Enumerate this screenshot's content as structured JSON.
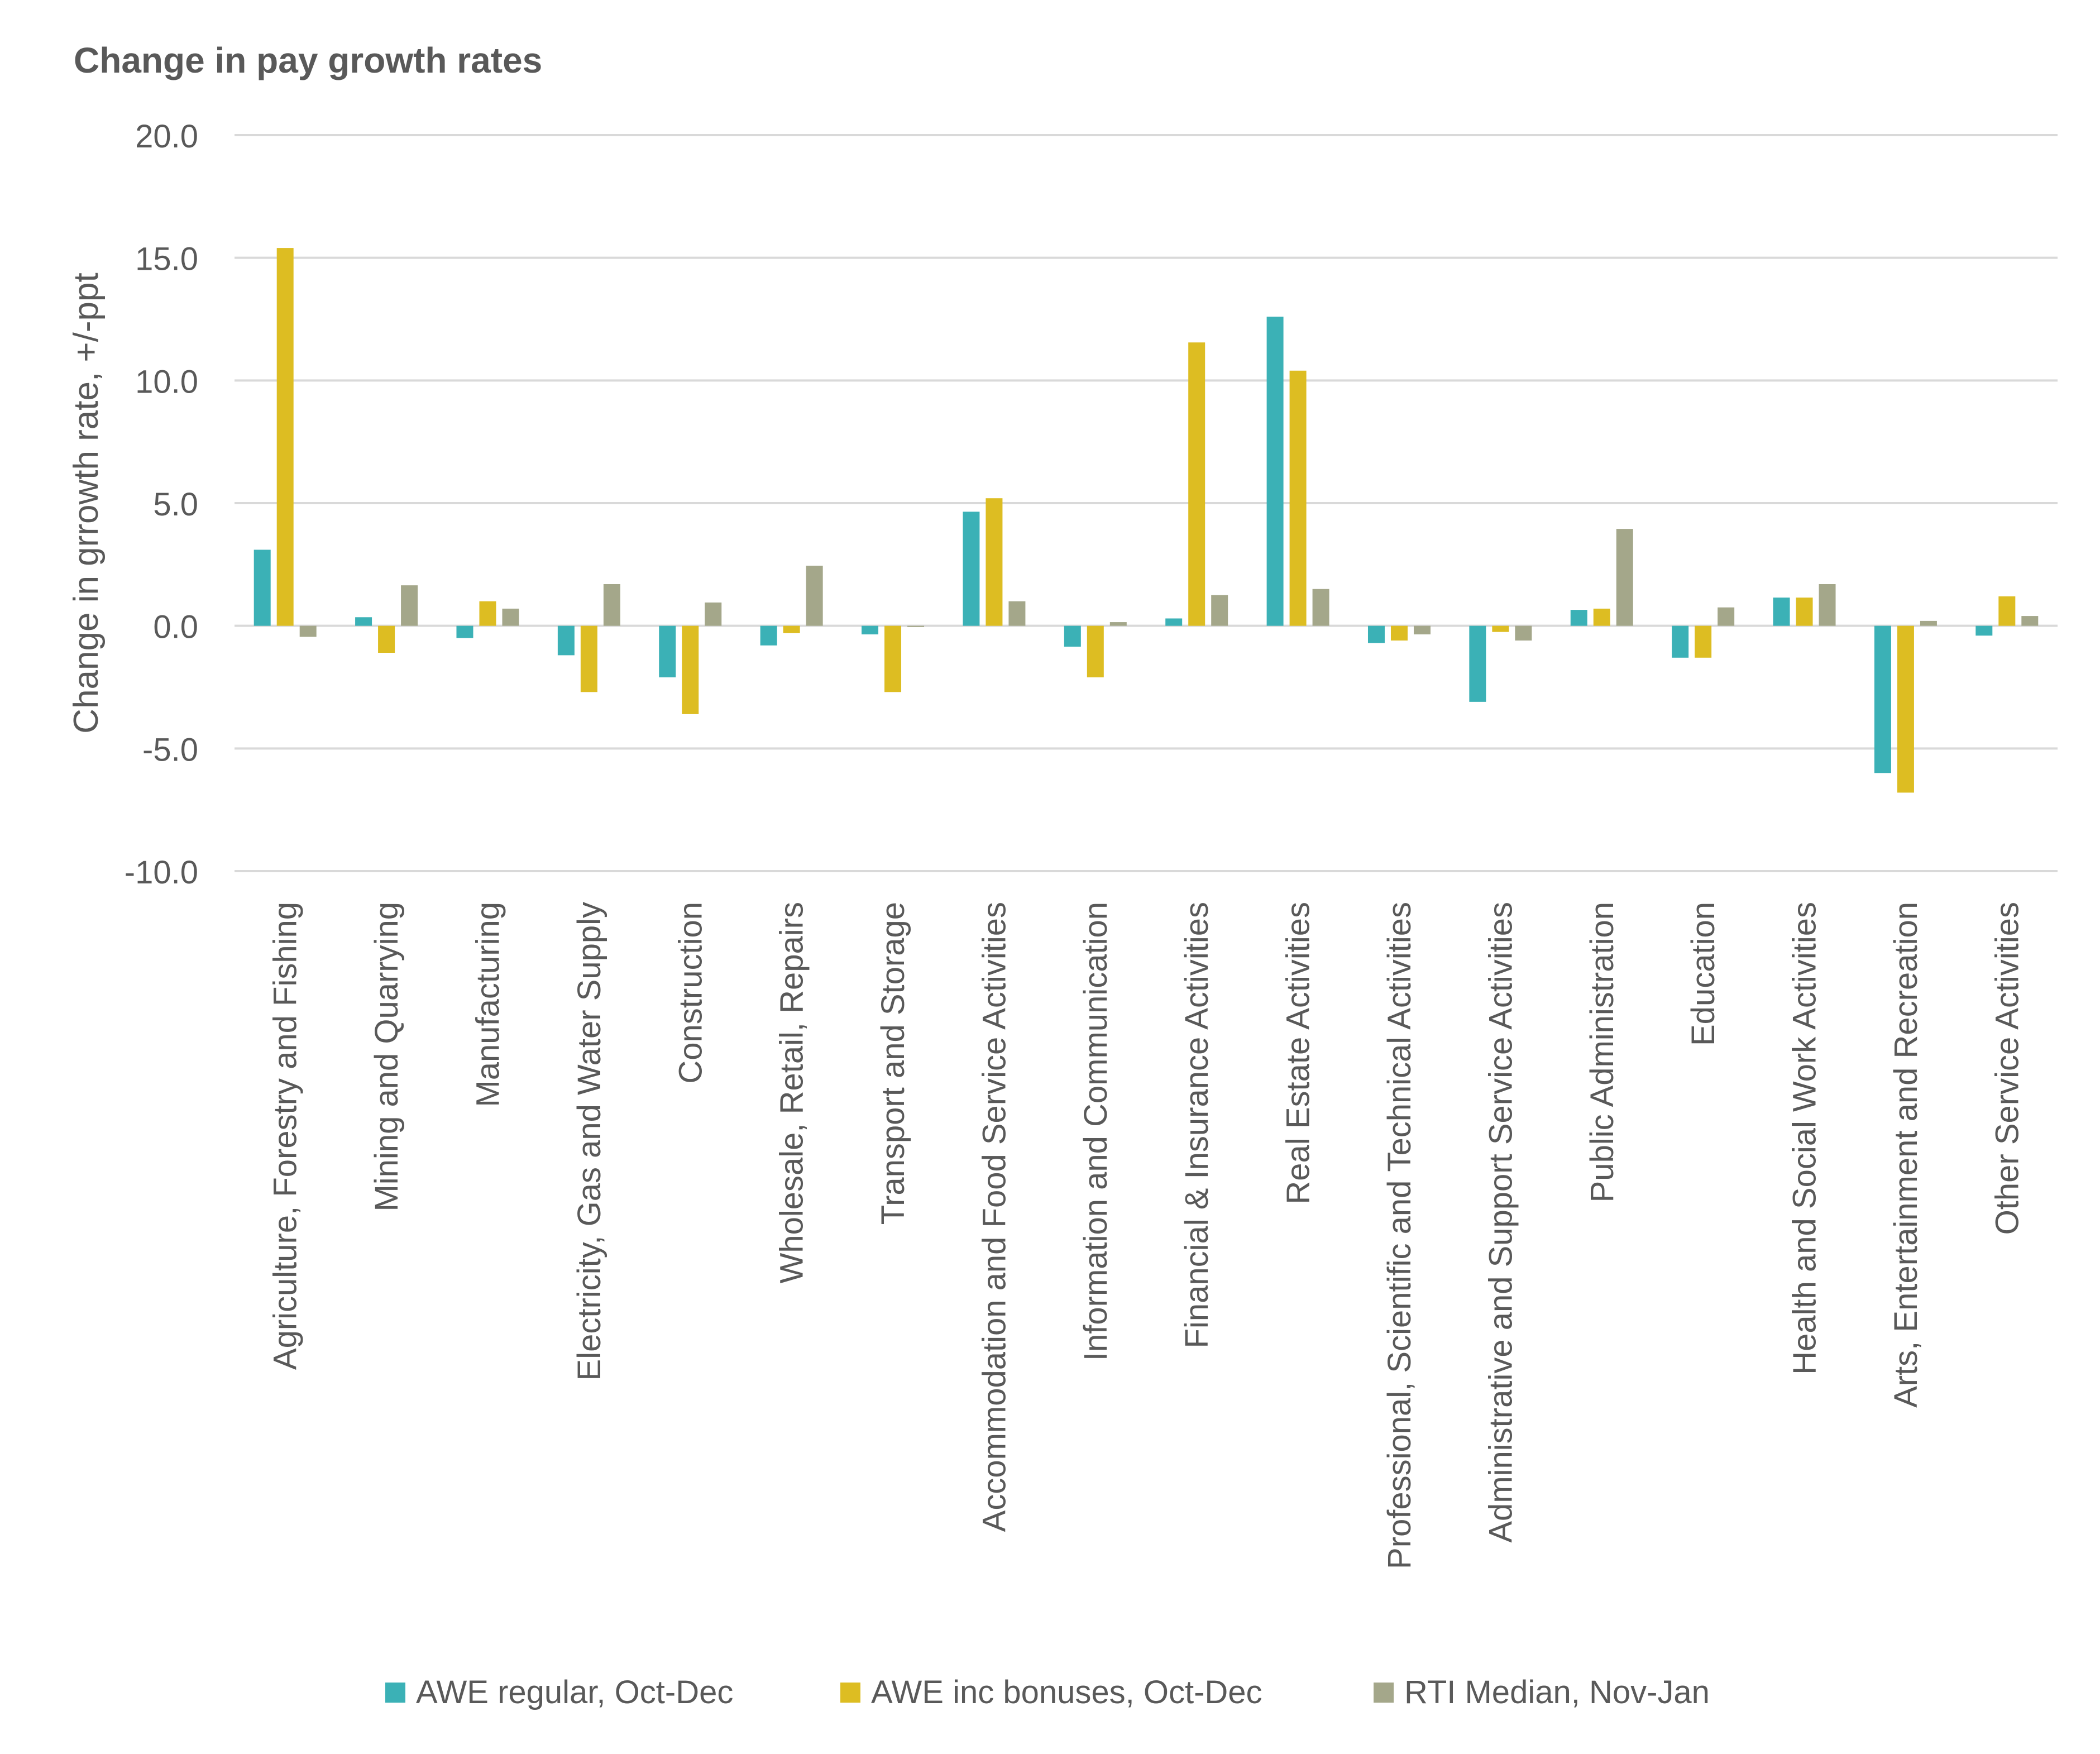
{
  "chart_data": {
    "type": "bar",
    "title": "Change in pay growth rates",
    "xlabel": "",
    "ylabel": "Change in grrowth rate, +/-ppt",
    "ylim": [
      -10,
      20
    ],
    "yticks": [
      20,
      15,
      10,
      5,
      0,
      -5,
      -10
    ],
    "ytick_labels": [
      "20.0",
      "15.0",
      "10.0",
      "5.0",
      "0.0",
      "-5.0",
      "-10.0"
    ],
    "grid": true,
    "legend_position": "bottom",
    "categories": [
      "Agriculture, Forestry and Fishing",
      "Mining and Quarrying",
      "Manufacturing",
      "Electricity, Gas and Water Supply",
      "Construction",
      "Wholesale, Retail, Repairs",
      "Transport and Storage",
      "Accommodation and Food Service Activities",
      "Information and Communication",
      "Financial & Insurance Activities",
      "Real Estate Activities",
      "Professional, Scientific and Technical Activities",
      "Administrative and Support Service Activities",
      "Public Administration",
      "Education",
      "Health and Social Work Activities",
      "Arts, Entertainment and Recreation",
      "Other Service Activities"
    ],
    "series": [
      {
        "name": "AWE regular, Oct-Dec",
        "color": "#3BB1B6",
        "values": [
          3.1,
          0.35,
          -0.5,
          -1.2,
          -2.1,
          -0.8,
          -0.35,
          4.65,
          -0.85,
          0.3,
          12.6,
          -0.7,
          -3.1,
          0.65,
          -1.3,
          1.15,
          -6.0,
          -0.4
        ]
      },
      {
        "name": "AWE inc bonuses, Oct-Dec",
        "color": "#DDBD22",
        "values": [
          15.4,
          -1.1,
          1.0,
          -2.7,
          -3.6,
          -0.3,
          -2.7,
          5.2,
          -2.1,
          11.55,
          10.4,
          -0.6,
          -0.25,
          0.7,
          -1.3,
          1.15,
          -6.8,
          1.2
        ]
      },
      {
        "name": "RTI Median, Nov-Jan",
        "color": "#A4A78A",
        "values": [
          -0.45,
          1.65,
          0.7,
          1.7,
          0.95,
          2.45,
          -0.05,
          1.0,
          0.15,
          1.25,
          1.5,
          -0.35,
          -0.6,
          3.95,
          0.75,
          1.7,
          0.2,
          0.4
        ]
      }
    ]
  }
}
